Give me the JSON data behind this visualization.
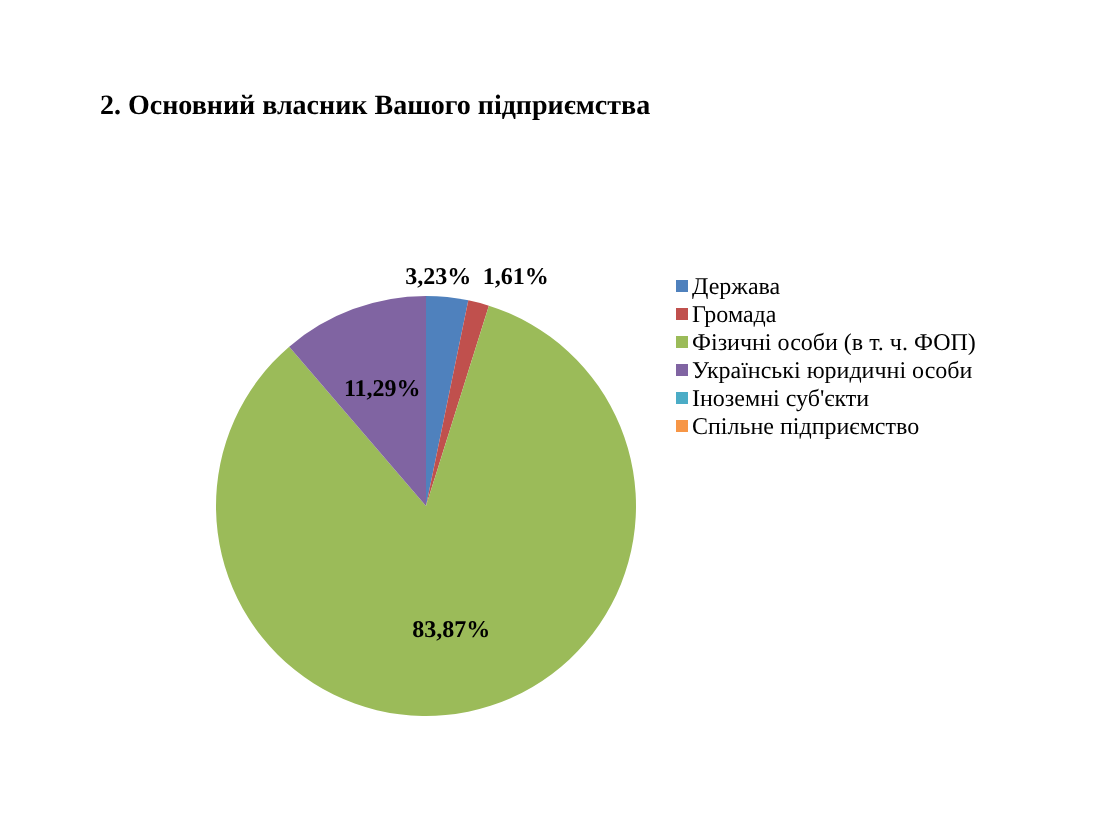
{
  "chart_data": {
    "type": "pie",
    "title": "2. Основний власник Вашого підприємства",
    "categories": [
      "Держава",
      "Громада",
      "Фізичні особи (в т. ч. ФОП)",
      "Українські юридичні особи",
      "Іноземні суб'єкти",
      "Спільне підприємство"
    ],
    "values": [
      3.23,
      1.61,
      83.87,
      11.29,
      0,
      0
    ],
    "colors": [
      "#4f81bd",
      "#c0504d",
      "#9bbb59",
      "#8064a2",
      "#4bacc6",
      "#f79646"
    ],
    "value_labels": [
      "3,23%",
      "1,61%",
      "83,87%",
      "11,29%",
      null,
      null
    ],
    "legend": "right"
  }
}
